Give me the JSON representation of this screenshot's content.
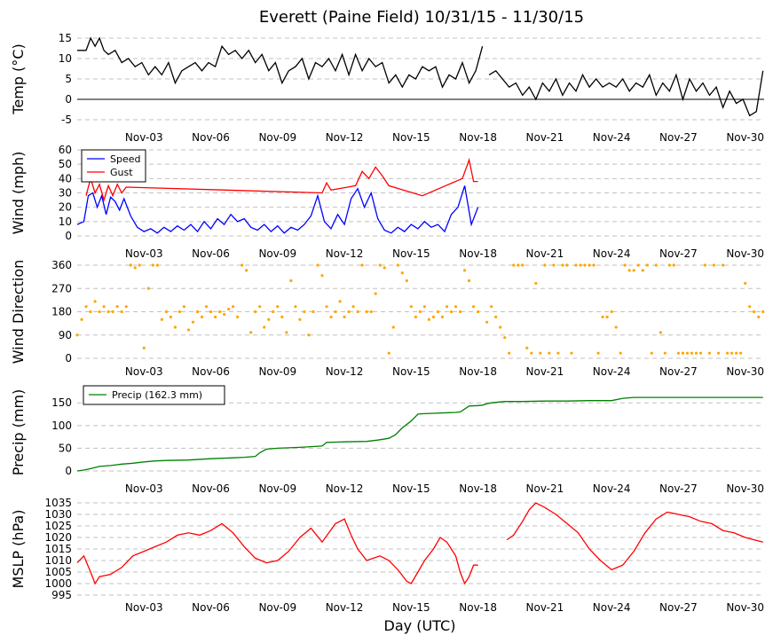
{
  "figure": {
    "title": "Everett (Paine Field) 10/31/15 - 11/30/15",
    "xlabel": "Day (UTC)",
    "x_ticks": [
      "Nov-03",
      "Nov-06",
      "Nov-09",
      "Nov-12",
      "Nov-15",
      "Nov-18",
      "Nov-21",
      "Nov-24",
      "Nov-27",
      "Nov-30"
    ]
  },
  "chart_data": [
    {
      "type": "line",
      "ylabel": "Temp (°C)",
      "ylim": [
        -5,
        15
      ],
      "yticks": [
        -5,
        0,
        5,
        10,
        15
      ],
      "grid": true,
      "zero_line": true,
      "series": [
        {
          "color": "#000000",
          "x": [
            0.0,
            0.4,
            0.6,
            0.8,
            1.0,
            1.2,
            1.4,
            1.7,
            2.0,
            2.3,
            2.6,
            2.9,
            3.2,
            3.5,
            3.8,
            4.1,
            4.4,
            4.7,
            5.0,
            5.3,
            5.6,
            5.9,
            6.2,
            6.5,
            6.8,
            7.1,
            7.4,
            7.7,
            8.0,
            8.3,
            8.6,
            8.9,
            9.2,
            9.5,
            9.8,
            10.1,
            10.4,
            10.7,
            11.0,
            11.3,
            11.6,
            11.9,
            12.2,
            12.5,
            12.8,
            13.1,
            13.4,
            13.7,
            14.0,
            14.3,
            14.6,
            14.9,
            15.2,
            15.5,
            15.8,
            16.1,
            16.4,
            16.7,
            17.0,
            17.3,
            17.6,
            17.9,
            18.2
          ],
          "values": [
            12,
            12,
            15,
            13,
            15,
            12,
            11,
            12,
            9,
            10,
            8,
            9,
            6,
            8,
            6,
            9,
            4,
            7,
            8,
            9,
            7,
            9,
            8,
            13,
            11,
            12,
            10,
            12,
            9,
            11,
            7,
            9,
            4,
            7,
            8,
            10,
            5,
            9,
            8,
            10,
            7,
            11,
            6,
            11,
            7,
            10,
            8,
            9,
            4,
            6,
            3,
            6,
            5,
            8,
            7,
            8,
            3,
            6,
            5,
            9,
            4,
            7,
            13
          ]
        },
        {
          "color": "#000000",
          "x": [
            18.5,
            18.8,
            19.1,
            19.4,
            19.7,
            20.0,
            20.3,
            20.6,
            20.9,
            21.2,
            21.5,
            21.8,
            22.1,
            22.4,
            22.7,
            23.0,
            23.3,
            23.6,
            23.9,
            24.2,
            24.5,
            24.8,
            25.1,
            25.4,
            25.7,
            26.0,
            26.3,
            26.6,
            26.9,
            27.2,
            27.5,
            27.8,
            28.1,
            28.4,
            28.7,
            29.0,
            29.3,
            29.6,
            29.9,
            30.2,
            30.5,
            30.8
          ],
          "values": [
            6,
            7,
            5,
            3,
            4,
            1,
            3,
            0,
            4,
            2,
            5,
            1,
            4,
            2,
            6,
            3,
            5,
            3,
            4,
            3,
            5,
            2,
            4,
            3,
            6,
            1,
            4,
            2,
            6,
            0,
            5,
            2,
            4,
            1,
            3,
            -2,
            2,
            -1,
            0,
            -4,
            -3,
            7
          ]
        }
      ]
    },
    {
      "type": "line",
      "ylabel": "Wind (mph)",
      "ylim": [
        0,
        60
      ],
      "yticks": [
        0,
        10,
        20,
        30,
        40,
        50,
        60
      ],
      "grid": true,
      "legend": {
        "position": "top-left"
      },
      "series": [
        {
          "name": "Speed",
          "color": "#0000ff",
          "x": [
            0.0,
            0.3,
            0.5,
            0.7,
            0.9,
            1.1,
            1.3,
            1.5,
            1.7,
            1.9,
            2.1,
            2.4,
            2.7,
            3.0,
            3.3,
            3.6,
            3.9,
            4.2,
            4.5,
            4.8,
            5.1,
            5.4,
            5.7,
            6.0,
            6.3,
            6.6,
            6.9,
            7.2,
            7.5,
            7.8,
            8.1,
            8.4,
            8.7,
            9.0,
            9.3,
            9.6,
            9.9,
            10.2,
            10.5,
            10.8,
            11.1,
            11.4,
            11.7,
            12.0,
            12.3,
            12.6,
            12.9,
            13.2,
            13.5,
            13.8,
            14.1,
            14.4,
            14.7,
            15.0,
            15.3,
            15.6,
            15.9,
            16.2,
            16.5,
            16.8,
            17.1,
            17.4,
            17.7,
            18.0
          ],
          "values": [
            8,
            10,
            28,
            30,
            20,
            28,
            15,
            27,
            24,
            18,
            26,
            14,
            6,
            3,
            5,
            2,
            6,
            3,
            7,
            4,
            8,
            3,
            10,
            5,
            12,
            8,
            15,
            10,
            12,
            6,
            4,
            8,
            3,
            7,
            2,
            6,
            4,
            8,
            14,
            28,
            10,
            5,
            15,
            8,
            26,
            33,
            20,
            30,
            12,
            4,
            2,
            6,
            3,
            8,
            5,
            10,
            6,
            8,
            3,
            15,
            20,
            35,
            8,
            20
          ]
        },
        {
          "name": "Gust",
          "color": "#ff0000",
          "x": [
            0.4,
            0.6,
            0.8,
            1.0,
            1.2,
            1.4,
            1.6,
            1.8,
            2.0,
            2.2,
            11.0,
            11.2,
            11.4,
            12.5,
            12.8,
            13.1,
            13.4,
            13.7,
            14.0,
            15.5,
            17.3,
            17.6,
            17.8,
            18.0
          ],
          "values": [
            28,
            40,
            30,
            36,
            25,
            35,
            28,
            36,
            30,
            34,
            30,
            37,
            32,
            35,
            45,
            40,
            48,
            42,
            35,
            28,
            40,
            53,
            38,
            38
          ]
        }
      ]
    },
    {
      "type": "scatter",
      "ylabel": "Wind Direction",
      "ylim": [
        0,
        360
      ],
      "yticks": [
        0,
        90,
        180,
        270,
        360
      ],
      "grid": true,
      "series": [
        {
          "color": "#ffa500",
          "x": [
            0.0,
            0.2,
            0.4,
            0.6,
            0.8,
            1.0,
            1.2,
            1.4,
            1.6,
            1.8,
            2.0,
            2.2,
            2.4,
            2.6,
            2.8,
            3.0,
            3.2,
            3.4,
            3.6,
            3.8,
            4.0,
            4.2,
            4.4,
            4.6,
            4.8,
            5.0,
            5.2,
            5.4,
            5.6,
            5.8,
            6.0,
            6.2,
            6.4,
            6.6,
            6.8,
            7.0,
            7.2,
            7.4,
            7.6,
            7.8,
            8.0,
            8.2,
            8.4,
            8.6,
            8.8,
            9.0,
            9.2,
            9.4,
            9.6,
            9.8,
            10.0,
            10.2,
            10.4,
            10.6,
            10.8,
            11.0,
            11.2,
            11.4,
            11.6,
            11.8,
            12.0,
            12.2,
            12.4,
            12.6,
            12.8,
            13.0,
            13.2,
            13.4,
            13.6,
            13.8,
            14.0,
            14.2,
            14.4,
            14.6,
            14.8,
            15.0,
            15.2,
            15.4,
            15.6,
            15.8,
            16.0,
            16.2,
            16.4,
            16.6,
            16.8,
            17.0,
            17.2,
            17.4,
            17.6,
            17.8,
            18.0
          ],
          "values": [
            90,
            150,
            200,
            180,
            220,
            180,
            200,
            180,
            180,
            200,
            180,
            200,
            360,
            350,
            360,
            40,
            270,
            360,
            360,
            150,
            180,
            160,
            120,
            180,
            200,
            110,
            140,
            180,
            160,
            200,
            180,
            160,
            180,
            170,
            190,
            200,
            160,
            360,
            340,
            100,
            180,
            200,
            120,
            150,
            180,
            200,
            160,
            100,
            300,
            200,
            150,
            180,
            90,
            180,
            360,
            320,
            200,
            160,
            180,
            220,
            160,
            180,
            200,
            180,
            360,
            180,
            180,
            250,
            360,
            350,
            20,
            120,
            360,
            330,
            300,
            200,
            160,
            180,
            200,
            150,
            160,
            180,
            160,
            200,
            180,
            200,
            180,
            340,
            300,
            200,
            180
          ]
        },
        {
          "color": "#ffa500",
          "x": [
            18.4,
            18.6,
            18.8,
            19.0,
            19.2,
            19.4,
            19.6,
            19.8,
            20.0,
            20.2,
            20.4,
            20.6,
            20.8,
            21.0,
            21.2,
            21.4,
            21.6,
            21.8,
            22.0,
            22.2,
            22.4,
            22.6,
            22.8,
            23.0,
            23.2,
            23.4,
            23.6,
            23.8,
            24.0,
            24.2,
            24.4,
            24.6,
            24.8,
            25.0,
            25.2,
            25.4,
            25.6,
            25.8,
            26.0,
            26.2,
            26.4,
            26.6,
            26.8,
            27.0,
            27.2,
            27.4,
            27.6,
            27.8,
            28.0,
            28.2,
            28.4,
            28.6,
            28.8,
            29.0,
            29.2,
            29.4,
            29.6,
            29.8,
            30.0,
            30.2,
            30.4,
            30.6,
            30.8
          ],
          "values": [
            140,
            200,
            160,
            120,
            80,
            20,
            360,
            360,
            360,
            40,
            20,
            290,
            20,
            360,
            20,
            360,
            20,
            360,
            360,
            20,
            360,
            360,
            360,
            360,
            360,
            20,
            160,
            160,
            180,
            120,
            20,
            360,
            340,
            340,
            360,
            340,
            360,
            20,
            360,
            100,
            20,
            360,
            360,
            20,
            20,
            20,
            20,
            20,
            20,
            360,
            20,
            360,
            20,
            360,
            20,
            20,
            20,
            20,
            290,
            200,
            180,
            160,
            180
          ]
        }
      ]
    },
    {
      "type": "line",
      "ylabel": "Precip (mm)",
      "ylim": [
        0,
        170
      ],
      "yticks": [
        0,
        50,
        100,
        150
      ],
      "grid": true,
      "legend": {
        "position": "top-left"
      },
      "series": [
        {
          "name": "Precip (162.3 mm)",
          "color": "#008000",
          "x": [
            0.0,
            0.3,
            0.6,
            1.0,
            1.5,
            2.0,
            2.5,
            3.0,
            3.5,
            4.0,
            5.0,
            6.0,
            6.5,
            7.0,
            7.5,
            8.0,
            8.2,
            8.5,
            9.0,
            10.0,
            11.0,
            11.2,
            12.0,
            13.0,
            13.5,
            14.0,
            14.3,
            14.6,
            15.0,
            15.3,
            15.5,
            16.0,
            17.0,
            17.2,
            17.6,
            18.0,
            18.2,
            18.4,
            18.6,
            19.0,
            19.2,
            19.4,
            20.0,
            21.0,
            22.0,
            23.0,
            24.0,
            24.2,
            24.5,
            25.0,
            26.0,
            27.0,
            28.0,
            29.0,
            30.0,
            30.8
          ],
          "values": [
            0,
            2,
            5,
            10,
            12,
            15,
            17,
            20,
            22,
            23,
            24,
            27,
            28,
            29,
            30,
            32,
            40,
            48,
            50,
            52,
            55,
            63,
            64,
            65,
            68,
            72,
            80,
            95,
            110,
            125,
            126,
            127,
            129,
            130,
            143,
            144,
            145,
            148,
            150,
            152,
            153,
            153,
            153,
            154,
            154,
            155,
            155,
            157,
            160,
            162,
            162,
            162,
            162,
            162,
            162,
            162
          ]
        }
      ]
    },
    {
      "type": "line",
      "ylabel": "MSLP (hPa)",
      "ylim": [
        995,
        1035
      ],
      "yticks": [
        995,
        1000,
        1005,
        1010,
        1015,
        1020,
        1025,
        1030,
        1035
      ],
      "grid": true,
      "series": [
        {
          "color": "#ff0000",
          "x": [
            0.0,
            0.3,
            0.6,
            0.8,
            1.0,
            1.5,
            2.0,
            2.5,
            3.0,
            3.5,
            4.0,
            4.5,
            5.0,
            5.5,
            6.0,
            6.5,
            7.0,
            7.5,
            8.0,
            8.5,
            9.0,
            9.5,
            10.0,
            10.5,
            11.0,
            11.3,
            11.6,
            12.0,
            12.3,
            12.6,
            13.0,
            13.3,
            13.6,
            14.0,
            14.4,
            14.8,
            15.0,
            15.3,
            15.6,
            16.0,
            16.3,
            16.6,
            17.0,
            17.2,
            17.4,
            17.6,
            17.8,
            18.0
          ],
          "values": [
            1009,
            1012,
            1005,
            1000,
            1003,
            1004,
            1007,
            1012,
            1014,
            1016,
            1018,
            1021,
            1022,
            1021,
            1023,
            1026,
            1022,
            1016,
            1011,
            1009,
            1010,
            1014,
            1020,
            1024,
            1018,
            1022,
            1026,
            1028,
            1021,
            1015,
            1010,
            1011,
            1012,
            1010,
            1006,
            1001,
            1000,
            1005,
            1010,
            1015,
            1020,
            1018,
            1012,
            1005,
            1000,
            1003,
            1008,
            1008
          ]
        },
        {
          "color": "#ff0000",
          "x": [
            19.3,
            19.6,
            20.0,
            20.3,
            20.6,
            21.0,
            21.5,
            22.0,
            22.5,
            23.0,
            23.5,
            24.0,
            24.5,
            25.0,
            25.5,
            26.0,
            26.5,
            27.0,
            27.5,
            28.0,
            28.5,
            29.0,
            29.5,
            30.0,
            30.4,
            30.8
          ],
          "values": [
            1019,
            1021,
            1027,
            1032,
            1035,
            1033,
            1030,
            1026,
            1022,
            1015,
            1010,
            1006,
            1008,
            1014,
            1022,
            1028,
            1031,
            1030,
            1029,
            1027,
            1026,
            1023,
            1022,
            1020,
            1019,
            1018
          ]
        }
      ]
    }
  ]
}
